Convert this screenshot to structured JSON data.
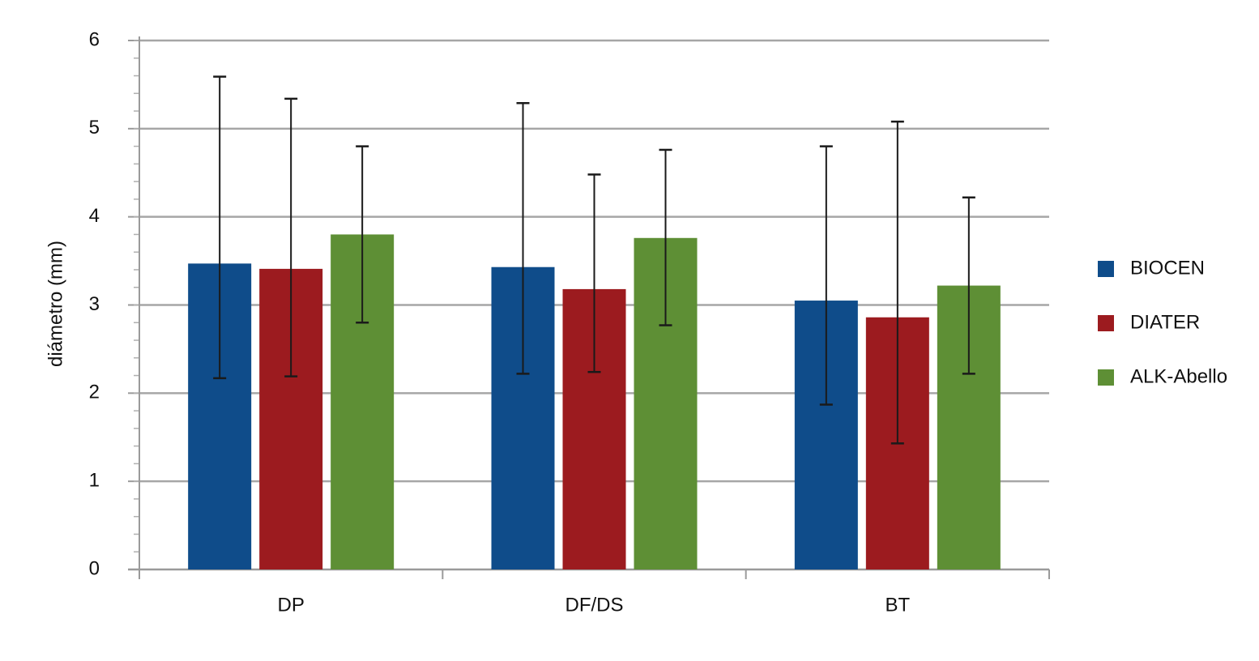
{
  "chart_data": {
    "type": "bar",
    "title": "",
    "xlabel": "",
    "ylabel": "diámetro (mm)",
    "ylim": [
      0,
      6
    ],
    "yticks": [
      "0",
      "1",
      "2",
      "3",
      "4",
      "5",
      "6"
    ],
    "categories": [
      "DP",
      "DF/DS",
      "BT"
    ],
    "grid": true,
    "legend_position": "right",
    "error_bars": true,
    "series": [
      {
        "name": "BIOCEN",
        "color": "#0f4c8a",
        "values": [
          3.47,
          3.43,
          3.05
        ],
        "error_low": [
          2.17,
          2.22,
          1.87
        ],
        "error_high": [
          5.59,
          5.29,
          4.8
        ]
      },
      {
        "name": "DIATER",
        "color": "#9c1b1f",
        "values": [
          3.41,
          3.18,
          2.86
        ],
        "error_low": [
          2.19,
          2.24,
          1.43
        ],
        "error_high": [
          5.34,
          4.48,
          5.08
        ]
      },
      {
        "name": "ALK-Abello",
        "color": "#5e8f35",
        "values": [
          3.8,
          3.76,
          3.22
        ],
        "error_low": [
          2.8,
          2.77,
          2.22
        ],
        "error_high": [
          4.8,
          4.76,
          4.22
        ]
      }
    ]
  }
}
